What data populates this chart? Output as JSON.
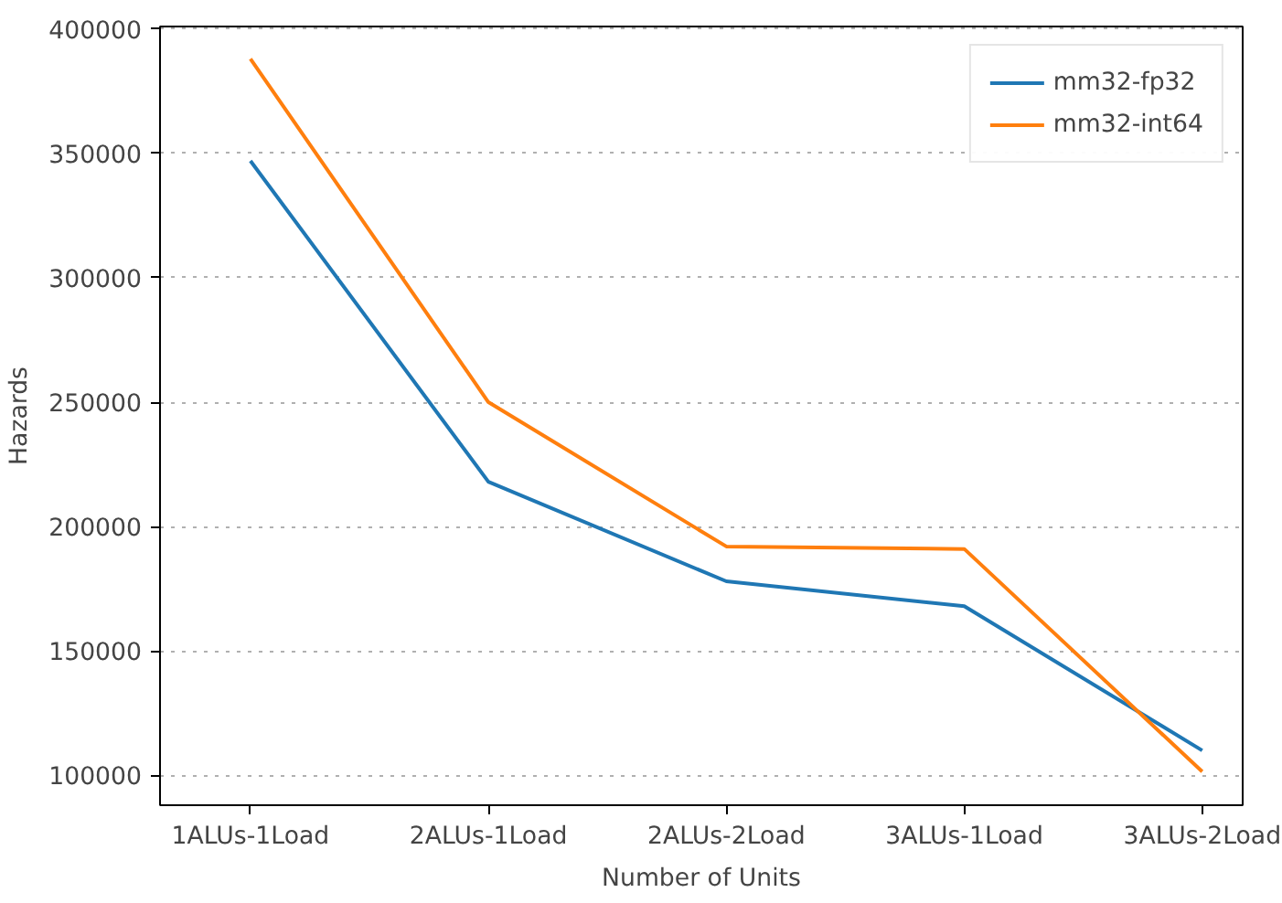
{
  "chart_data": {
    "type": "line",
    "xlabel": "Number of Units",
    "ylabel": "Hazards",
    "categories": [
      "1ALUs-1Load",
      "2ALUs-1Load",
      "2ALUs-2Load",
      "3ALUs-1Load",
      "3ALUs-2Load"
    ],
    "series": [
      {
        "name": "mm32-fp32",
        "color": "#1f77b4",
        "values": [
          347000,
          218000,
          178000,
          168000,
          110000
        ]
      },
      {
        "name": "mm32-int64",
        "color": "#ff7f0e",
        "values": [
          388000,
          250000,
          192000,
          191000,
          101500
        ]
      }
    ],
    "ylim": [
      88000,
      401000
    ],
    "yticks": [
      100000,
      150000,
      200000,
      250000,
      300000,
      350000,
      400000
    ],
    "grid": "y",
    "legend": "top right",
    "marker": "none",
    "line_style": "solid"
  }
}
